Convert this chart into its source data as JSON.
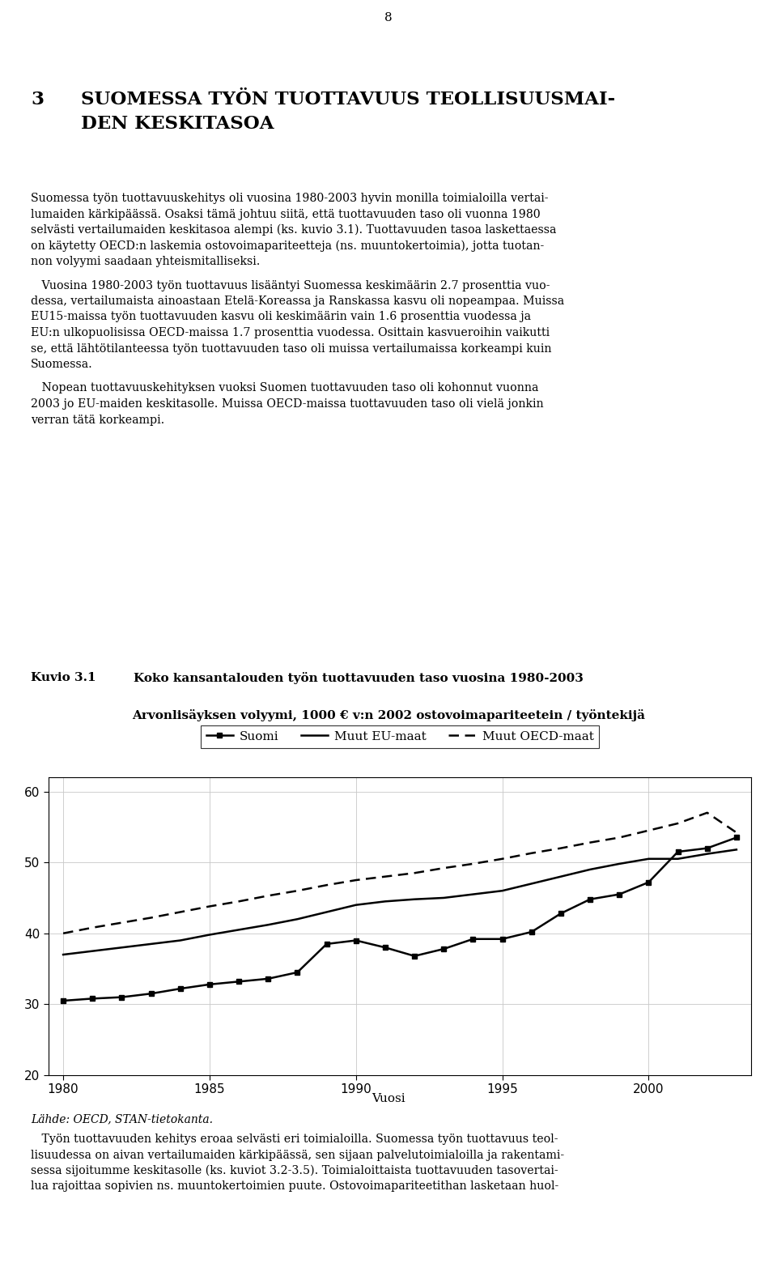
{
  "page_number": "8",
  "figure_label": "Kuvio 3.1",
  "figure_title": "Koko kansantalouden työn tuottavuuden taso vuosina 1980-2003",
  "subtitle": "Arvonlisäyksen volyymi, 1000 € v:n 2002 ostovoimapariteetein / työntekijä",
  "xlabel": "Vuosi",
  "source": "Lähde: OECD, STAN-tietokanta.",
  "ylim": [
    20,
    62
  ],
  "yticks": [
    20,
    30,
    40,
    50,
    60
  ],
  "xlim_min": 1979.5,
  "xlim_max": 2003.5,
  "xticks": [
    1980,
    1985,
    1990,
    1995,
    2000
  ],
  "years": [
    1980,
    1981,
    1982,
    1983,
    1984,
    1985,
    1986,
    1987,
    1988,
    1989,
    1990,
    1991,
    1992,
    1993,
    1994,
    1995,
    1996,
    1997,
    1998,
    1999,
    2000,
    2001,
    2002,
    2003
  ],
  "suomi": [
    30.5,
    30.8,
    31.0,
    31.5,
    32.2,
    32.8,
    33.2,
    33.6,
    34.5,
    38.5,
    39.0,
    38.0,
    36.8,
    37.8,
    39.2,
    39.2,
    40.2,
    42.8,
    44.8,
    45.5,
    47.2,
    51.5,
    52.0,
    53.5
  ],
  "eu_maat": [
    37.0,
    37.5,
    38.0,
    38.5,
    39.0,
    39.8,
    40.5,
    41.2,
    42.0,
    43.0,
    44.0,
    44.5,
    44.8,
    45.0,
    45.5,
    46.0,
    47.0,
    48.0,
    49.0,
    49.8,
    50.5,
    50.5,
    51.2,
    51.8
  ],
  "oecd_maat": [
    40.0,
    40.8,
    41.5,
    42.2,
    43.0,
    43.8,
    44.5,
    45.3,
    46.0,
    46.8,
    47.5,
    48.0,
    48.5,
    49.2,
    49.8,
    50.5,
    51.3,
    52.0,
    52.8,
    53.5,
    54.5,
    55.5,
    57.0,
    54.2
  ],
  "legend_suomi": "Suomi",
  "legend_eu": "Muut EU-maat",
  "legend_oecd": "Muut OECD-maat",
  "heading_num": "3",
  "heading_text1": "SUOMESSA TYÖN TUOTTAVUUS TEOLLISUUSMAI-",
  "heading_text2": "DEN KESKITASOA",
  "para1": [
    "Suomessa työn tuottavuuskehitys oli vuosina 1980-2003 hyvin monilla toimialoilla vertai-",
    "lumaiden kärkipäässä. Osaksi tämä johtuu siitä, että tuottavuuden taso oli vuonna 1980",
    "selvästi vertailumaiden keskitasoa alempi (ks. kuvio 3.1). Tuottavuuden tasoa laskettaessa",
    "on käytetty OECD:n laskemia ostovoimapariteetteja (ns. muuntokertoimia), jotta tuotan-",
    "non volyymi saadaan yhteismitalliseksi."
  ],
  "para2": [
    "   Vuosina 1980-2003 työn tuottavuus lisääntyi Suomessa keskimäärin 2.7 prosenttia vuo-",
    "dessa, vertailumaista ainoastaan Etelä-Koreassa ja Ranskassa kasvu oli nopeampaa. Muissa",
    "EU15-maissa työn tuottavuuden kasvu oli keskimäärin vain 1.6 prosenttia vuodessa ja",
    "EU:n ulkopuolisissa OECD-maissa 1.7 prosenttia vuodessa. Osittain kasvueroihin vaikutti",
    "se, että lähtötilanteessa työn tuottavuuden taso oli muissa vertailumaissa korkeampi kuin",
    "Suomessa."
  ],
  "para3": [
    "   Nopean tuottavuuskehityksen vuoksi Suomen tuottavuuden taso oli kohonnut vuonna",
    "2003 jo EU-maiden keskitasolle. Muissa OECD-maissa tuottavuuden taso oli vielä jonkin",
    "verran tätä korkeampi."
  ],
  "para4": [
    "   Työn tuottavuuden kehitys eroaa selvästi eri toimialoilla. Suomessa työn tuottavuus teol-",
    "lisuudessa on aivan vertailumaiden kärkipäässä, sen sijaan palvelutoimialoilla ja rakentami-",
    "sessa sijoitumme keskitasolle (ks. kuviot 3.2-3.5). Toimialoittaista tuottavuuden tasovertai-",
    "lua rajoittaa sopivien ns. muuntokertoimien puute. Ostovoimapariteetithan lasketaan huol-"
  ]
}
